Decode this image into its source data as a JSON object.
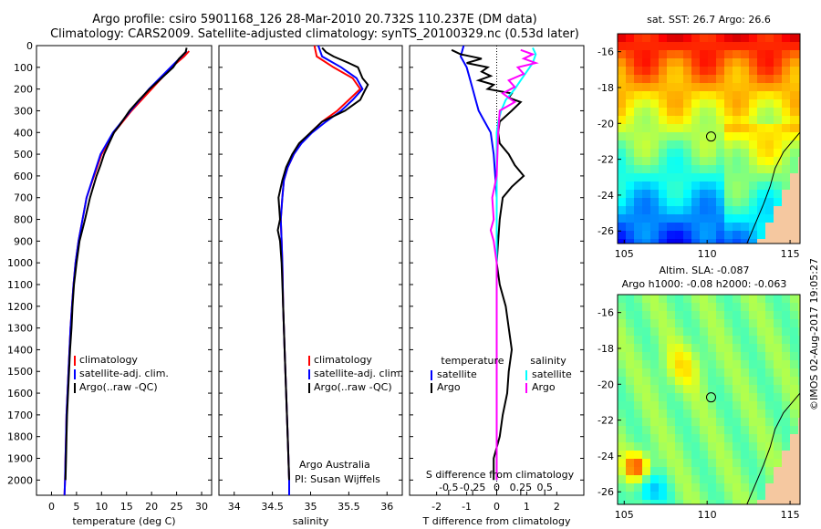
{
  "title": {
    "line1": "Argo profile: csiro 5901168_126 28-Mar-2010 20.732S 110.237E (DM data)",
    "line2": "Climatology: CARS2009. Satellite-adjusted climatology: synTS_20100329.nc (0.53d later)"
  },
  "colors": {
    "climatology": "#ff0000",
    "satellite": "#0000ff",
    "argo": "#000000",
    "sat_s": "#00ffff",
    "argo_s": "#ff00ff"
  },
  "depth_axis": {
    "ticks": [
      0,
      100,
      200,
      300,
      400,
      500,
      600,
      700,
      800,
      900,
      1000,
      1100,
      1200,
      1300,
      1400,
      1500,
      1600,
      1700,
      1800,
      1900,
      2000
    ],
    "max": 2070
  },
  "chart_data": [
    {
      "type": "line",
      "id": "temperature",
      "xlabel": "temperature (deg C)",
      "xlim": [
        -3,
        32
      ],
      "xticks": [
        0,
        5,
        10,
        15,
        20,
        25,
        30
      ],
      "legend": {
        "items": [
          "climatology",
          "satellite-adj. clim.",
          "Argo(..raw -QC)"
        ]
      },
      "series": [
        {
          "name": "climatology",
          "color": "#ff0000",
          "points": [
            [
              27.5,
              25
            ],
            [
              26.5,
              50
            ],
            [
              24,
              100
            ],
            [
              20,
              200
            ],
            [
              16,
              300
            ],
            [
              12.5,
              400
            ],
            [
              10,
              500
            ],
            [
              8.5,
              600
            ],
            [
              7,
              700
            ],
            [
              6.2,
              800
            ],
            [
              5.4,
              900
            ],
            [
              4.8,
              1000
            ],
            [
              4.4,
              1100
            ],
            [
              4.1,
              1200
            ],
            [
              3.8,
              1300
            ],
            [
              3.6,
              1400
            ],
            [
              3.4,
              1500
            ],
            [
              3.2,
              1600
            ],
            [
              3,
              1700
            ],
            [
              2.9,
              1800
            ],
            [
              2.8,
              1900
            ],
            [
              2.7,
              2000
            ],
            [
              2.6,
              2070
            ]
          ]
        },
        {
          "name": "satellite-adj. clim.",
          "color": "#0000ff",
          "points": [
            [
              27,
              25
            ],
            [
              26,
              50
            ],
            [
              23.8,
              100
            ],
            [
              19.5,
              200
            ],
            [
              15.8,
              300
            ],
            [
              12.3,
              400
            ],
            [
              9.8,
              500
            ],
            [
              8.4,
              600
            ],
            [
              7,
              700
            ],
            [
              6.2,
              800
            ],
            [
              5.4,
              900
            ],
            [
              4.8,
              1000
            ],
            [
              4.4,
              1100
            ],
            [
              4.1,
              1200
            ],
            [
              3.8,
              1300
            ],
            [
              3.6,
              1400
            ],
            [
              3.4,
              1500
            ],
            [
              3.2,
              1600
            ],
            [
              3,
              1700
            ],
            [
              2.9,
              1800
            ],
            [
              2.8,
              1900
            ],
            [
              2.7,
              2000
            ],
            [
              2.6,
              2070
            ]
          ]
        },
        {
          "name": "Argo(..raw -QC)",
          "color": "#000000",
          "points": [
            [
              27,
              10
            ],
            [
              26.8,
              30
            ],
            [
              25.5,
              60
            ],
            [
              24.3,
              100
            ],
            [
              22,
              150
            ],
            [
              19.6,
              200
            ],
            [
              17.5,
              250
            ],
            [
              15.6,
              300
            ],
            [
              13.5,
              370
            ],
            [
              12.5,
              400
            ],
            [
              11.5,
              450
            ],
            [
              10.5,
              500
            ],
            [
              9.8,
              550
            ],
            [
              9,
              600
            ],
            [
              7.7,
              700
            ],
            [
              6.7,
              800
            ],
            [
              5.6,
              900
            ],
            [
              5,
              1000
            ],
            [
              4.5,
              1100
            ],
            [
              4.2,
              1200
            ],
            [
              4,
              1300
            ],
            [
              3.7,
              1400
            ],
            [
              3.5,
              1500
            ],
            [
              3.3,
              1600
            ],
            [
              3.1,
              1700
            ],
            [
              3,
              1800
            ],
            [
              2.9,
              1900
            ],
            [
              2.8,
              2000
            ]
          ]
        }
      ]
    },
    {
      "type": "line",
      "id": "salinity",
      "xlabel": "salinity",
      "xlim": [
        33.8,
        36.2
      ],
      "xticks": [
        34,
        34.5,
        35,
        35.5,
        36
      ],
      "legend": {
        "items": [
          "climatology",
          "satellite-adj. clim.",
          "Argo(..raw -QC)"
        ]
      },
      "annotations": [
        "Argo Australia",
        "PI: Susan Wijffels"
      ],
      "series": [
        {
          "name": "climatology",
          "color": "#ff0000",
          "points": [
            [
              35.05,
              0
            ],
            [
              35.08,
              50
            ],
            [
              35.3,
              100
            ],
            [
              35.55,
              150
            ],
            [
              35.65,
              200
            ],
            [
              35.5,
              250
            ],
            [
              35.35,
              300
            ],
            [
              35.15,
              350
            ],
            [
              35,
              400
            ],
            [
              34.87,
              450
            ],
            [
              34.78,
              500
            ],
            [
              34.7,
              560
            ],
            [
              34.65,
              620
            ],
            [
              34.63,
              700
            ],
            [
              34.61,
              800
            ],
            [
              34.62,
              900
            ],
            [
              34.63,
              1000
            ],
            [
              34.64,
              1200
            ],
            [
              34.66,
              1400
            ],
            [
              34.68,
              1600
            ],
            [
              34.7,
              1800
            ],
            [
              34.72,
              2000
            ],
            [
              34.72,
              2070
            ]
          ]
        },
        {
          "name": "satellite-adj. clim.",
          "color": "#0000ff",
          "points": [
            [
              35.1,
              0
            ],
            [
              35.15,
              50
            ],
            [
              35.4,
              100
            ],
            [
              35.6,
              150
            ],
            [
              35.68,
              200
            ],
            [
              35.55,
              250
            ],
            [
              35.4,
              300
            ],
            [
              35.2,
              350
            ],
            [
              35.02,
              400
            ],
            [
              34.88,
              450
            ],
            [
              34.78,
              500
            ],
            [
              34.7,
              560
            ],
            [
              34.65,
              620
            ],
            [
              34.63,
              700
            ],
            [
              34.61,
              800
            ],
            [
              34.62,
              900
            ],
            [
              34.63,
              1000
            ],
            [
              34.64,
              1200
            ],
            [
              34.66,
              1400
            ],
            [
              34.68,
              1600
            ],
            [
              34.7,
              1800
            ],
            [
              34.72,
              2000
            ],
            [
              34.72,
              2070
            ]
          ]
        },
        {
          "name": "Argo(..raw -QC)",
          "color": "#000000",
          "points": [
            [
              35.15,
              10
            ],
            [
              35.2,
              30
            ],
            [
              35.3,
              50
            ],
            [
              35.5,
              80
            ],
            [
              35.62,
              100
            ],
            [
              35.68,
              150
            ],
            [
              35.75,
              180
            ],
            [
              35.72,
              200
            ],
            [
              35.65,
              250
            ],
            [
              35.45,
              300
            ],
            [
              35.15,
              350
            ],
            [
              35,
              400
            ],
            [
              34.85,
              450
            ],
            [
              34.76,
              500
            ],
            [
              34.68,
              560
            ],
            [
              34.63,
              620
            ],
            [
              34.58,
              700
            ],
            [
              34.6,
              800
            ],
            [
              34.57,
              850
            ],
            [
              34.6,
              900
            ],
            [
              34.62,
              1000
            ],
            [
              34.64,
              1200
            ],
            [
              34.66,
              1400
            ],
            [
              34.68,
              1600
            ],
            [
              34.7,
              1800
            ],
            [
              34.72,
              2000
            ]
          ]
        }
      ]
    },
    {
      "type": "line",
      "id": "differences",
      "xlabel": "T difference from climatology",
      "xlabel2": "S difference from climatology",
      "xlim": [
        -2.9,
        2.9
      ],
      "xticks": [
        -2,
        -1,
        0,
        1,
        2
      ],
      "s_ticks": [
        {
          "x": -1.6,
          "label": "-0.5"
        },
        {
          "x": -0.8,
          "label": "-0.25"
        },
        {
          "x": 0,
          "label": "0"
        },
        {
          "x": 0.8,
          "label": "0.25"
        },
        {
          "x": 1.6,
          "label": "0.5"
        }
      ],
      "legend": {
        "temperature_title": "temperature",
        "salinity_title": "salinity",
        "items": [
          "satellite",
          "Argo",
          "satellite",
          "Argo"
        ]
      },
      "series": [
        {
          "name": "temperature satellite",
          "color": "#0000ff",
          "points": [
            [
              -1.1,
              0
            ],
            [
              -1.2,
              50
            ],
            [
              -1,
              100
            ],
            [
              -0.9,
              150
            ],
            [
              -0.8,
              200
            ],
            [
              -0.7,
              250
            ],
            [
              -0.6,
              300
            ],
            [
              -0.4,
              350
            ],
            [
              -0.2,
              400
            ],
            [
              -0.1,
              500
            ],
            [
              -0.05,
              600
            ],
            [
              0,
              700
            ],
            [
              0,
              2000
            ]
          ]
        },
        {
          "name": "temperature Argo",
          "color": "#000000",
          "points": [
            [
              -1.5,
              20
            ],
            [
              -1.2,
              40
            ],
            [
              -0.5,
              60
            ],
            [
              -1,
              80
            ],
            [
              -0.3,
              100
            ],
            [
              -0.5,
              120
            ],
            [
              -0.2,
              140
            ],
            [
              -0.6,
              160
            ],
            [
              -0.1,
              180
            ],
            [
              -0.3,
              200
            ],
            [
              0.5,
              220
            ],
            [
              0.4,
              240
            ],
            [
              0.8,
              260
            ],
            [
              0.5,
              300
            ],
            [
              0.1,
              350
            ],
            [
              0.05,
              400
            ],
            [
              0.1,
              450
            ],
            [
              0.4,
              500
            ],
            [
              0.6,
              550
            ],
            [
              0.9,
              600
            ],
            [
              0.5,
              650
            ],
            [
              0.2,
              700
            ],
            [
              0.1,
              800
            ],
            [
              0.05,
              900
            ],
            [
              0,
              1000
            ],
            [
              0.1,
              1100
            ],
            [
              0.3,
              1200
            ],
            [
              0.4,
              1300
            ],
            [
              0.5,
              1400
            ],
            [
              0.4,
              1500
            ],
            [
              0.35,
              1600
            ],
            [
              0.2,
              1700
            ],
            [
              0.1,
              1800
            ],
            [
              -0.1,
              1900
            ],
            [
              -0.1,
              2000
            ]
          ]
        },
        {
          "name": "salinity satellite",
          "color": "#00ffff",
          "points": [
            [
              1.2,
              10
            ],
            [
              1.3,
              40
            ],
            [
              1.2,
              80
            ],
            [
              1,
              120
            ],
            [
              0.8,
              160
            ],
            [
              0.6,
              200
            ],
            [
              0.3,
              250
            ],
            [
              0.15,
              300
            ],
            [
              0.05,
              350
            ],
            [
              0,
              400
            ],
            [
              0,
              2000
            ]
          ]
        },
        {
          "name": "salinity Argo",
          "color": "#ff00ff",
          "points": [
            [
              0.8,
              20
            ],
            [
              1.2,
              40
            ],
            [
              0.9,
              60
            ],
            [
              1.3,
              80
            ],
            [
              0.7,
              100
            ],
            [
              0.9,
              130
            ],
            [
              0.4,
              160
            ],
            [
              0.6,
              190
            ],
            [
              0.2,
              220
            ],
            [
              0.6,
              260
            ],
            [
              0.1,
              300
            ],
            [
              0.05,
              400
            ],
            [
              0,
              600
            ],
            [
              -0.15,
              700
            ],
            [
              -0.1,
              800
            ],
            [
              -0.2,
              850
            ],
            [
              -0.1,
              900
            ],
            [
              0,
              1000
            ],
            [
              0,
              2000
            ]
          ]
        }
      ]
    },
    {
      "type": "heatmap",
      "id": "sst_map",
      "title": "sat. SST: 26.7 Argo: 26.6",
      "xlim": [
        104.6,
        115.6
      ],
      "ylim": [
        -26.7,
        -15
      ],
      "xticks": [
        105,
        110,
        115
      ],
      "yticks": [
        -16,
        -18,
        -20,
        -22,
        -24,
        -26
      ],
      "argo_position": [
        110.237,
        -20.732
      ]
    },
    {
      "type": "heatmap",
      "id": "sla_map",
      "title": "Altim. SLA: -0.087",
      "subtitle": "Argo h1000: -0.08 h2000: -0.063",
      "xlim": [
        104.6,
        115.6
      ],
      "ylim": [
        -26.7,
        -15
      ],
      "xticks": [
        105,
        110,
        115
      ],
      "yticks": [
        -16,
        -18,
        -20,
        -22,
        -24,
        -26
      ],
      "argo_position": [
        110.237,
        -20.732
      ]
    }
  ],
  "timestamp": "©IMOS 02-Aug-2017 19:05:27"
}
